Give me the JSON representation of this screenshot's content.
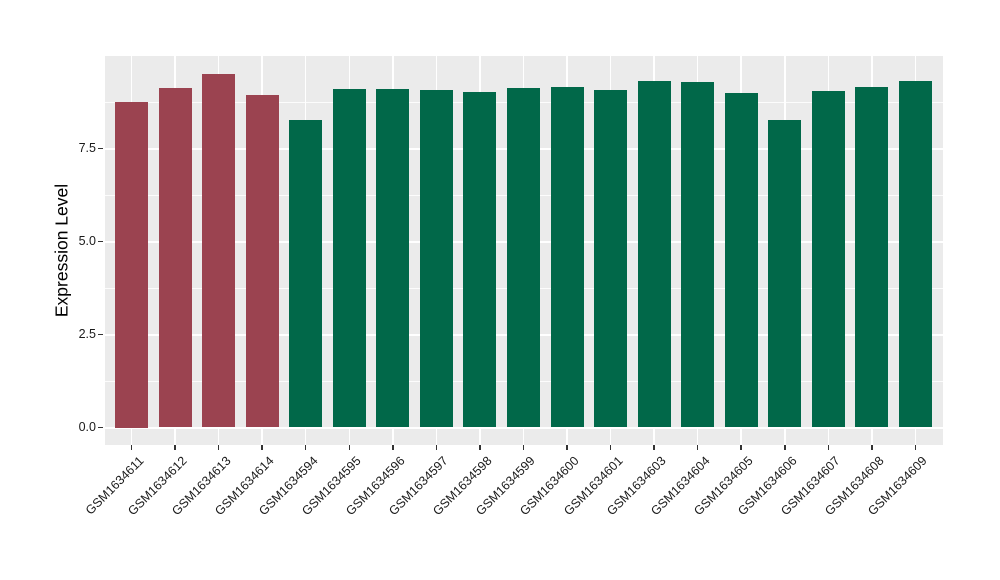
{
  "figure": {
    "background_color": "#FFFFFF",
    "panel_background_color": "#EBEBEB",
    "gridline_color": "#FFFFFF",
    "tick_mark_color": "#333333",
    "text_color": "#1a1a1a"
  },
  "chart_data": {
    "type": "bar",
    "title": "",
    "xlabel": "",
    "ylabel": "Expression Level",
    "categories": [
      "GSM1634611",
      "GSM1634612",
      "GSM1634613",
      "GSM1634614",
      "GSM1634594",
      "GSM1634595",
      "GSM1634596",
      "GSM1634597",
      "GSM1634598",
      "GSM1634599",
      "GSM1634600",
      "GSM1634601",
      "GSM1634603",
      "GSM1634604",
      "GSM1634605",
      "GSM1634606",
      "GSM1634607",
      "GSM1634608",
      "GSM1634609"
    ],
    "values": [
      8.75,
      9.13,
      9.5,
      8.95,
      8.27,
      9.11,
      9.11,
      9.06,
      9.03,
      9.13,
      9.16,
      9.08,
      9.32,
      9.29,
      8.99,
      8.27,
      9.05,
      9.16,
      9.32
    ],
    "groups": [
      "maroon",
      "maroon",
      "maroon",
      "maroon",
      "green",
      "green",
      "green",
      "green",
      "green",
      "green",
      "green",
      "green",
      "green",
      "green",
      "green",
      "green",
      "green",
      "green",
      "green"
    ],
    "group_colors": {
      "maroon": "#9B4350",
      "green": "#016849"
    },
    "y_ticks": [
      {
        "value": 0.0,
        "label": "0.0"
      },
      {
        "value": 2.5,
        "label": "2.5"
      },
      {
        "value": 5.0,
        "label": "5.0"
      },
      {
        "value": 7.5,
        "label": "7.5"
      }
    ],
    "y_minor_ticks": [
      1.25,
      3.75,
      6.25,
      8.75
    ],
    "ylim": [
      -0.47,
      10.0
    ],
    "x_tick_angle": -45,
    "grid": true,
    "legend": false,
    "bar_width_frac": 0.76
  }
}
